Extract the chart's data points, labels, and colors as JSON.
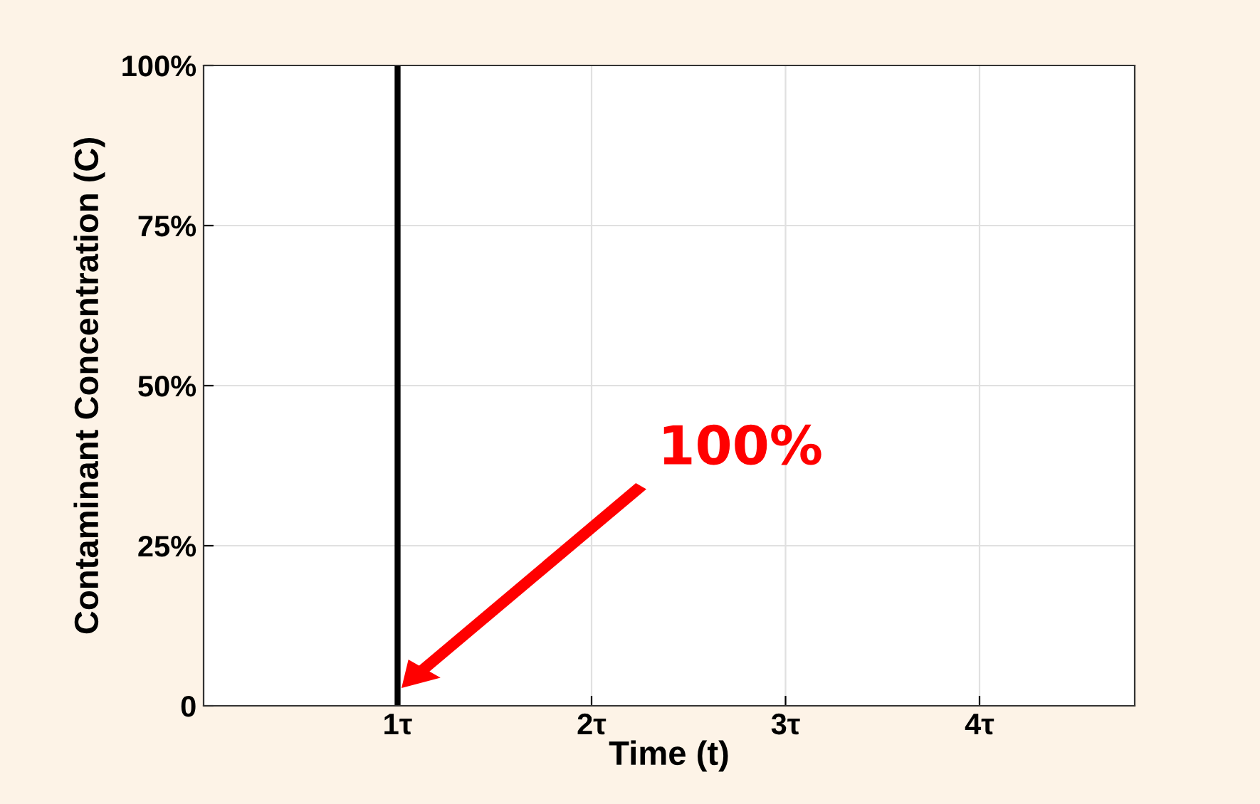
{
  "chart_data": {
    "type": "line",
    "xlabel": "Time (t)",
    "ylabel": "Contaminant Concentration (C)",
    "series": [
      {
        "color": "#000000",
        "x": [
          1,
          1
        ],
        "values": [
          0,
          100
        ]
      }
    ],
    "xlim": [
      0,
      4.8
    ],
    "xticks": [
      {
        "value": 1,
        "label": "1τ"
      },
      {
        "value": 2,
        "label": "2τ"
      },
      {
        "value": 3,
        "label": "3τ"
      },
      {
        "value": 4,
        "label": "4τ"
      }
    ],
    "ylim": [
      0,
      100
    ],
    "yticks": [
      0,
      {
        "value": 25,
        "label": "25%"
      },
      {
        "value": 50,
        "label": "50%"
      },
      {
        "value": 75,
        "label": "75%"
      },
      {
        "value": 100,
        "label": "100%"
      }
    ],
    "grid": true,
    "annotations": [
      "100%"
    ]
  }
}
